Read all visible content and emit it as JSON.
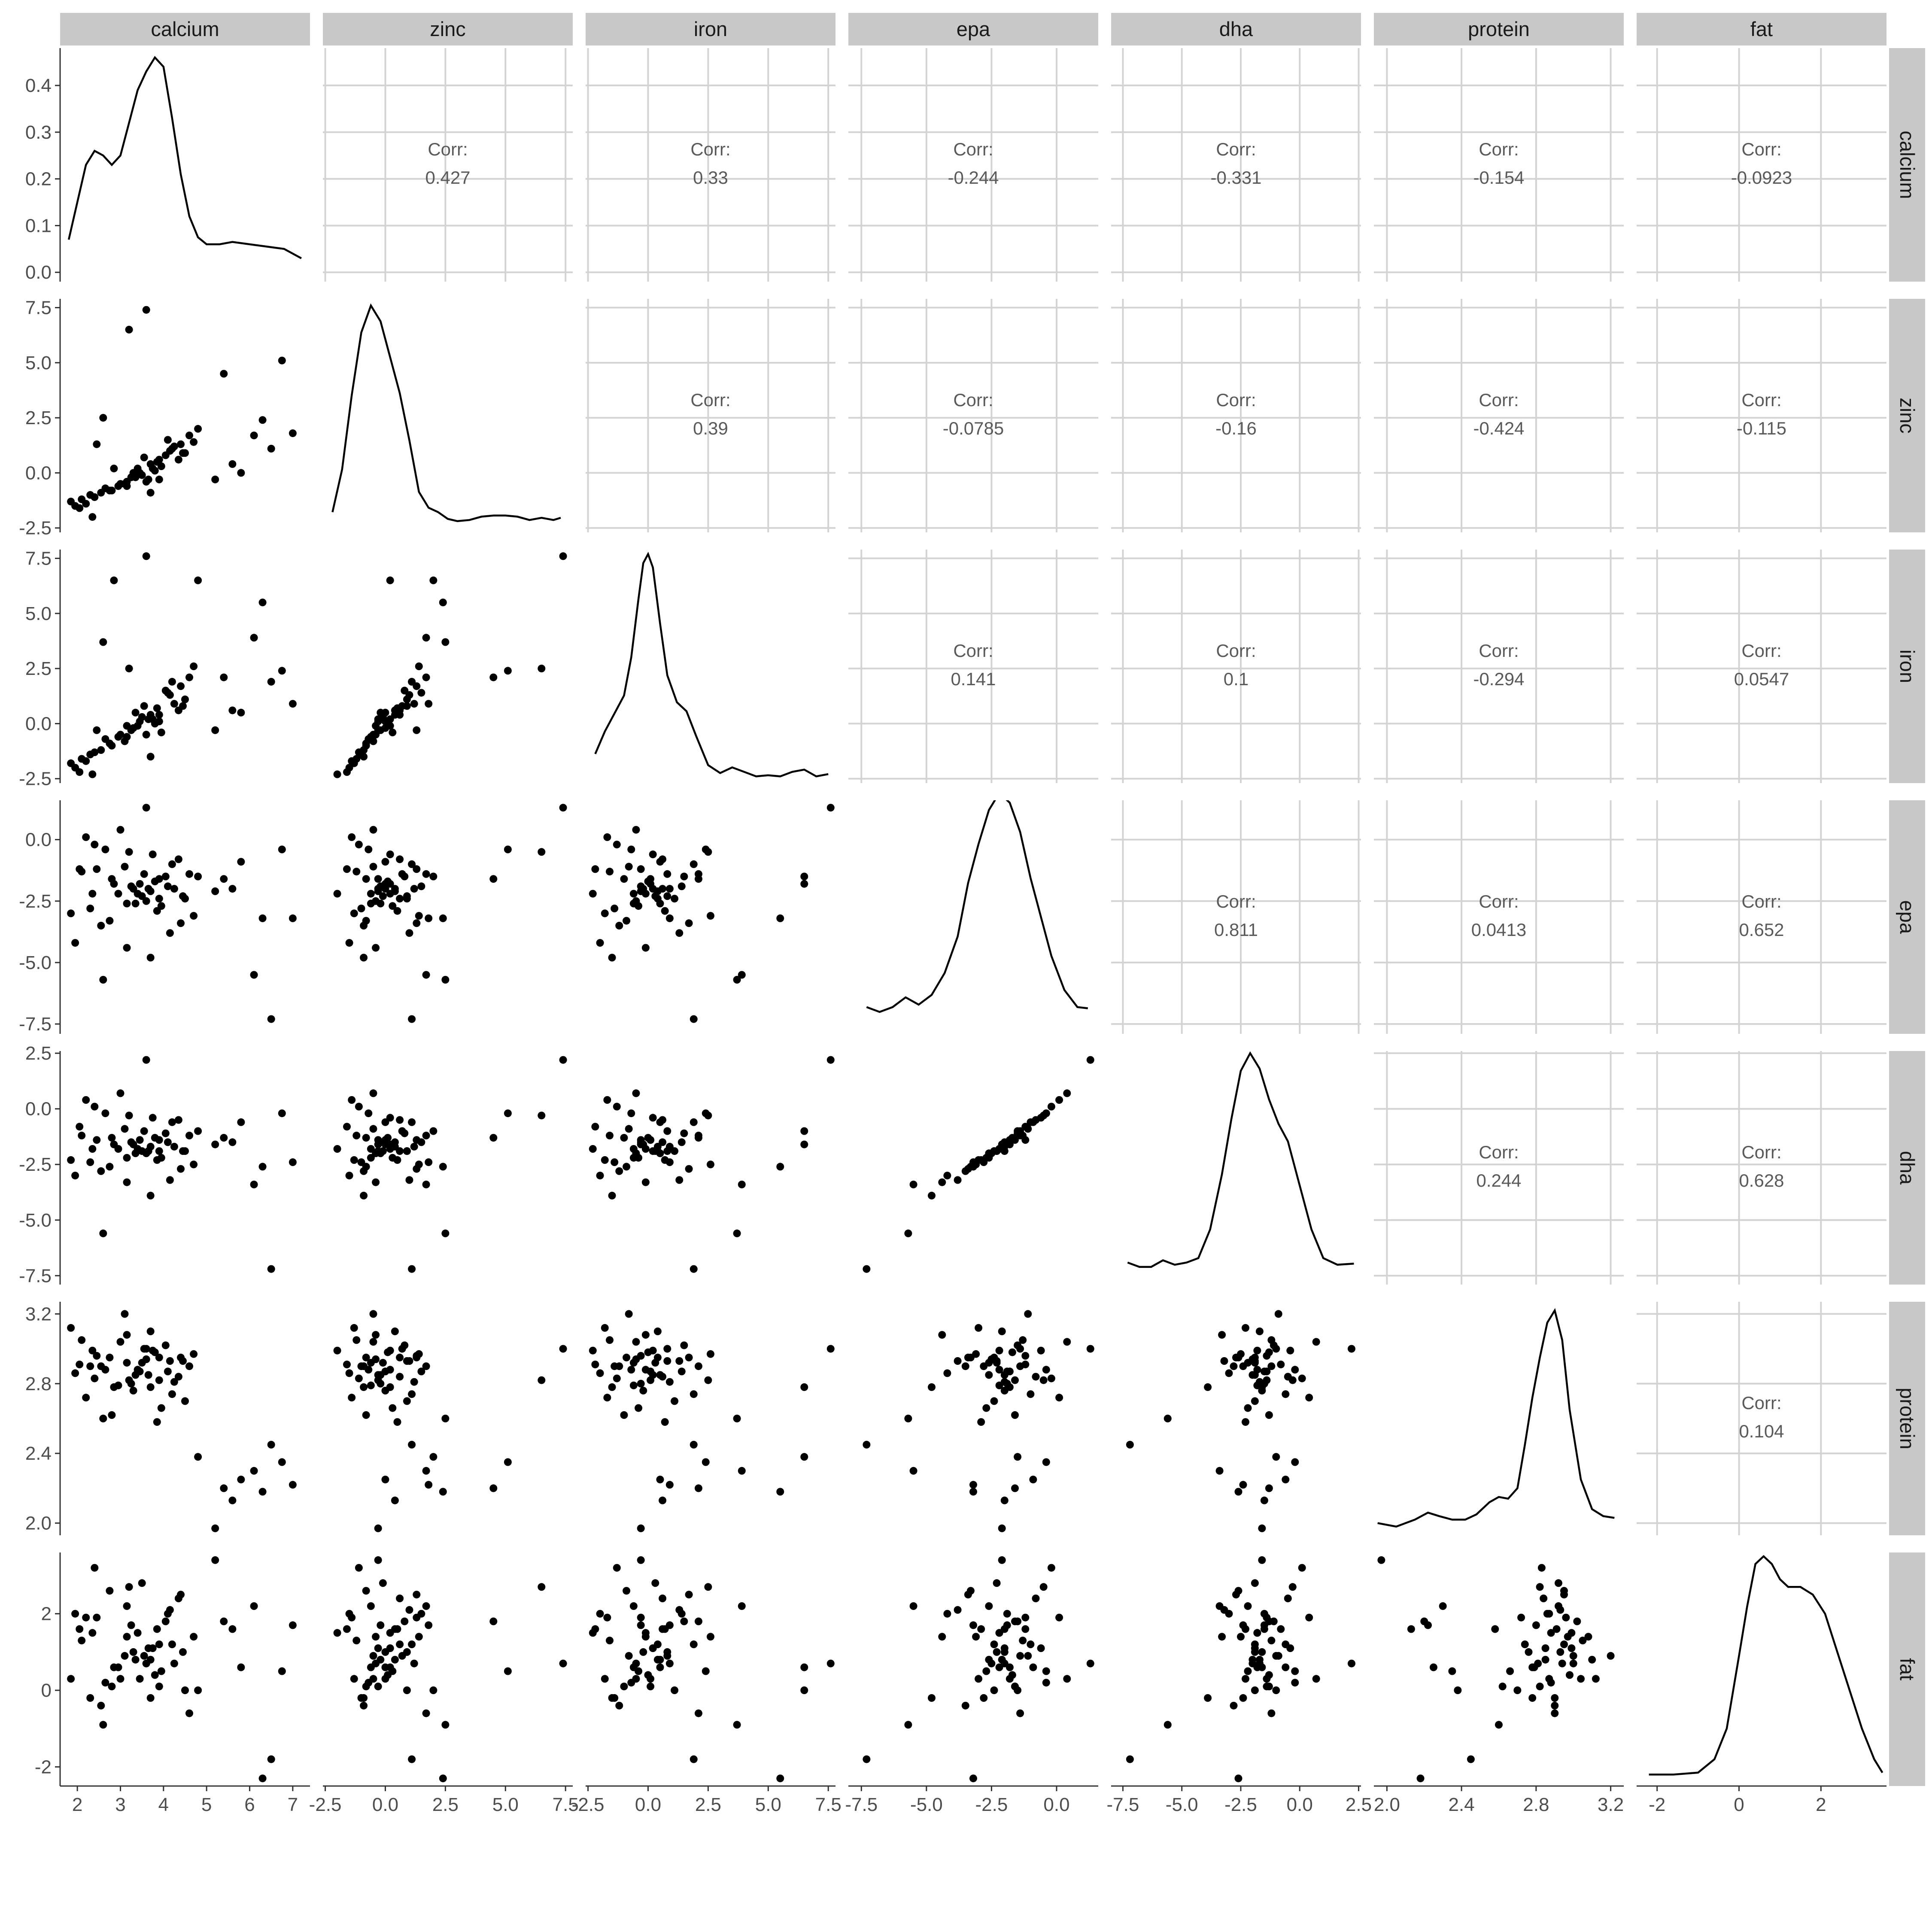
{
  "chart_data": {
    "type": "scatter-matrix",
    "variables": [
      "calcium",
      "zinc",
      "iron",
      "epa",
      "dha",
      "protein",
      "fat"
    ],
    "corr_label": "Corr:",
    "correlations": [
      {
        "row": "calcium",
        "col": "zinc",
        "value": "0.427"
      },
      {
        "row": "calcium",
        "col": "iron",
        "value": "0.33"
      },
      {
        "row": "calcium",
        "col": "epa",
        "value": "-0.244"
      },
      {
        "row": "calcium",
        "col": "dha",
        "value": "-0.331"
      },
      {
        "row": "calcium",
        "col": "protein",
        "value": "-0.154"
      },
      {
        "row": "calcium",
        "col": "fat",
        "value": "-0.0923"
      },
      {
        "row": "zinc",
        "col": "iron",
        "value": "0.39"
      },
      {
        "row": "zinc",
        "col": "epa",
        "value": "-0.0785"
      },
      {
        "row": "zinc",
        "col": "dha",
        "value": "-0.16"
      },
      {
        "row": "zinc",
        "col": "protein",
        "value": "-0.424"
      },
      {
        "row": "zinc",
        "col": "fat",
        "value": "-0.115"
      },
      {
        "row": "iron",
        "col": "epa",
        "value": "0.141"
      },
      {
        "row": "iron",
        "col": "dha",
        "value": "0.1"
      },
      {
        "row": "iron",
        "col": "protein",
        "value": "-0.294"
      },
      {
        "row": "iron",
        "col": "fat",
        "value": "0.0547"
      },
      {
        "row": "epa",
        "col": "dha",
        "value": "0.811"
      },
      {
        "row": "epa",
        "col": "protein",
        "value": "0.0413"
      },
      {
        "row": "epa",
        "col": "fat",
        "value": "0.652"
      },
      {
        "row": "dha",
        "col": "protein",
        "value": "0.244"
      },
      {
        "row": "dha",
        "col": "fat",
        "value": "0.628"
      },
      {
        "row": "protein",
        "col": "fat",
        "value": "0.104"
      }
    ],
    "x_ranges": {
      "calcium": [
        1.6,
        7.4
      ],
      "zinc": [
        -2.6,
        7.8
      ],
      "iron": [
        -2.6,
        7.8
      ],
      "epa": [
        -8.0,
        1.6
      ],
      "dha": [
        -8.0,
        2.6
      ],
      "protein": [
        1.93,
        3.27
      ],
      "fat": [
        -2.5,
        3.6
      ]
    },
    "x_ticks": {
      "calcium": [
        "2",
        "3",
        "4",
        "5",
        "6",
        "7"
      ],
      "zinc": [
        "-2.5",
        "0.0",
        "2.5",
        "5.0",
        "7.5"
      ],
      "iron": [
        "-2.5",
        "0.0",
        "2.5",
        "5.0",
        "7.5"
      ],
      "epa": [
        "-7.5",
        "-5.0",
        "-2.5",
        "0.0"
      ],
      "dha": [
        "-7.5",
        "-5.0",
        "-2.5",
        "0.0",
        "2.5"
      ],
      "protein": [
        "2.0",
        "2.4",
        "2.8",
        "3.2"
      ],
      "fat": [
        "-2",
        "0",
        "2"
      ]
    },
    "y_ranges": {
      "calcium": [
        -0.02,
        0.48
      ],
      "zinc": [
        -2.7,
        7.9
      ],
      "iron": [
        -2.7,
        7.9
      ],
      "epa": [
        -7.9,
        1.6
      ],
      "dha": [
        -7.9,
        2.6
      ],
      "protein": [
        1.93,
        3.27
      ],
      "fat": [
        -2.5,
        3.6
      ]
    },
    "y_ticks": {
      "calcium": [
        "0.0",
        "0.1",
        "0.2",
        "0.3",
        "0.4"
      ],
      "zinc": [
        "-2.5",
        "0.0",
        "2.5",
        "5.0",
        "7.5"
      ],
      "iron": [
        "-2.5",
        "0.0",
        "2.5",
        "5.0",
        "7.5"
      ],
      "epa": [
        "-7.5",
        "-5.0",
        "-2.5",
        "0.0"
      ],
      "dha": [
        "-7.5",
        "-5.0",
        "-2.5",
        "0.0",
        "2.5"
      ],
      "protein": [
        "2.0",
        "2.4",
        "2.8",
        "3.2"
      ],
      "fat": [
        "-2",
        "0",
        "2"
      ]
    },
    "density_curves": {
      "calcium": [
        [
          1.8,
          0.07
        ],
        [
          2.0,
          0.15
        ],
        [
          2.2,
          0.23
        ],
        [
          2.4,
          0.26
        ],
        [
          2.6,
          0.25
        ],
        [
          2.8,
          0.23
        ],
        [
          3.0,
          0.25
        ],
        [
          3.2,
          0.32
        ],
        [
          3.4,
          0.39
        ],
        [
          3.6,
          0.43
        ],
        [
          3.8,
          0.46
        ],
        [
          4.0,
          0.44
        ],
        [
          4.2,
          0.33
        ],
        [
          4.4,
          0.21
        ],
        [
          4.6,
          0.12
        ],
        [
          4.8,
          0.075
        ],
        [
          5.0,
          0.06
        ],
        [
          5.3,
          0.06
        ],
        [
          5.6,
          0.065
        ],
        [
          6.0,
          0.06
        ],
        [
          6.4,
          0.055
        ],
        [
          6.8,
          0.05
        ],
        [
          7.2,
          0.03
        ]
      ],
      "zinc": [
        [
          -2.2,
          -1.7
        ],
        [
          -1.8,
          0.2
        ],
        [
          -1.4,
          3.5
        ],
        [
          -1.0,
          6.3
        ],
        [
          -0.6,
          7.5
        ],
        [
          -0.2,
          6.8
        ],
        [
          0.2,
          5.2
        ],
        [
          0.6,
          3.6
        ],
        [
          1.0,
          1.5
        ],
        [
          1.4,
          -0.8
        ],
        [
          1.8,
          -1.5
        ],
        [
          2.2,
          -1.7
        ],
        [
          2.6,
          -2.0
        ],
        [
          3.0,
          -2.1
        ],
        [
          3.5,
          -2.05
        ],
        [
          4.0,
          -1.9
        ],
        [
          4.5,
          -1.85
        ],
        [
          5.0,
          -1.85
        ],
        [
          5.5,
          -1.9
        ],
        [
          6.0,
          -2.05
        ],
        [
          6.5,
          -1.95
        ],
        [
          7.0,
          -2.05
        ],
        [
          7.3,
          -1.95
        ]
      ],
      "iron": [
        [
          -2.2,
          -1.3
        ],
        [
          -1.8,
          -0.3
        ],
        [
          -1.4,
          0.5
        ],
        [
          -1.0,
          1.3
        ],
        [
          -0.7,
          3.0
        ],
        [
          -0.4,
          5.6
        ],
        [
          -0.2,
          7.2
        ],
        [
          0.0,
          7.6
        ],
        [
          0.2,
          7.0
        ],
        [
          0.5,
          4.5
        ],
        [
          0.8,
          2.2
        ],
        [
          1.2,
          1.0
        ],
        [
          1.6,
          0.6
        ],
        [
          2.0,
          -0.5
        ],
        [
          2.5,
          -1.8
        ],
        [
          3.0,
          -2.15
        ],
        [
          3.5,
          -1.9
        ],
        [
          4.0,
          -2.1
        ],
        [
          4.5,
          -2.3
        ],
        [
          5.0,
          -2.25
        ],
        [
          5.5,
          -2.3
        ],
        [
          6.0,
          -2.1
        ],
        [
          6.5,
          -2.0
        ],
        [
          7.0,
          -2.3
        ],
        [
          7.5,
          -2.2
        ]
      ],
      "epa": [
        [
          -7.3,
          -6.9
        ],
        [
          -6.8,
          -7.1
        ],
        [
          -6.3,
          -6.9
        ],
        [
          -5.8,
          -6.5
        ],
        [
          -5.3,
          -6.8
        ],
        [
          -4.8,
          -6.4
        ],
        [
          -4.3,
          -5.5
        ],
        [
          -3.8,
          -4.0
        ],
        [
          -3.4,
          -1.8
        ],
        [
          -3.0,
          -0.2
        ],
        [
          -2.6,
          1.2
        ],
        [
          -2.2,
          1.9
        ],
        [
          -1.8,
          1.5
        ],
        [
          -1.4,
          0.3
        ],
        [
          -1.0,
          -1.6
        ],
        [
          -0.6,
          -3.2
        ],
        [
          -0.2,
          -4.8
        ],
        [
          0.3,
          -6.2
        ],
        [
          0.8,
          -6.9
        ],
        [
          1.2,
          -6.95
        ]
      ],
      "dha": [
        [
          -7.3,
          -7.0
        ],
        [
          -6.8,
          -7.2
        ],
        [
          -6.3,
          -7.2
        ],
        [
          -5.8,
          -6.9
        ],
        [
          -5.3,
          -7.1
        ],
        [
          -4.8,
          -7.0
        ],
        [
          -4.3,
          -6.8
        ],
        [
          -3.8,
          -5.5
        ],
        [
          -3.3,
          -3.0
        ],
        [
          -2.9,
          -0.5
        ],
        [
          -2.5,
          1.7
        ],
        [
          -2.1,
          2.5
        ],
        [
          -1.7,
          1.8
        ],
        [
          -1.3,
          0.4
        ],
        [
          -0.9,
          -0.7
        ],
        [
          -0.5,
          -1.5
        ],
        [
          0.0,
          -3.5
        ],
        [
          0.5,
          -5.5
        ],
        [
          1.0,
          -6.8
        ],
        [
          1.6,
          -7.1
        ],
        [
          2.3,
          -7.05
        ]
      ],
      "protein": [
        [
          1.95,
          2.0
        ],
        [
          2.05,
          1.98
        ],
        [
          2.15,
          2.02
        ],
        [
          2.22,
          2.06
        ],
        [
          2.28,
          2.04
        ],
        [
          2.35,
          2.02
        ],
        [
          2.42,
          2.02
        ],
        [
          2.48,
          2.05
        ],
        [
          2.55,
          2.12
        ],
        [
          2.6,
          2.15
        ],
        [
          2.65,
          2.14
        ],
        [
          2.7,
          2.2
        ],
        [
          2.74,
          2.45
        ],
        [
          2.78,
          2.72
        ],
        [
          2.82,
          2.95
        ],
        [
          2.86,
          3.15
        ],
        [
          2.9,
          3.22
        ],
        [
          2.94,
          3.05
        ],
        [
          2.98,
          2.65
        ],
        [
          3.04,
          2.25
        ],
        [
          3.1,
          2.08
        ],
        [
          3.16,
          2.04
        ],
        [
          3.22,
          2.03
        ]
      ],
      "fat": [
        [
          -2.2,
          -2.2
        ],
        [
          -1.6,
          -2.2
        ],
        [
          -1.0,
          -2.15
        ],
        [
          -0.6,
          -1.8
        ],
        [
          -0.3,
          -1.0
        ],
        [
          0.0,
          0.9
        ],
        [
          0.2,
          2.2
        ],
        [
          0.4,
          3.3
        ],
        [
          0.6,
          3.5
        ],
        [
          0.8,
          3.3
        ],
        [
          1.0,
          2.9
        ],
        [
          1.2,
          2.7
        ],
        [
          1.5,
          2.7
        ],
        [
          1.8,
          2.5
        ],
        [
          2.1,
          2.0
        ],
        [
          2.4,
          1.0
        ],
        [
          2.7,
          0.0
        ],
        [
          3.0,
          -1.0
        ],
        [
          3.3,
          -1.8
        ],
        [
          3.5,
          -2.15
        ]
      ]
    },
    "series": [
      {
        "name": "calcium",
        "values": [
          3.65,
          1.85,
          2.45,
          2.85,
          3.15,
          3.55,
          3.4,
          3.9,
          2.75,
          3.7,
          4.2,
          2.3,
          3.25,
          3.8,
          1.95,
          4.5,
          2.1,
          3.6,
          4.35,
          2.55,
          3.3,
          4.05,
          2.65,
          3.5,
          3.95,
          4.7,
          2.4,
          3.1,
          3.85,
          3.45,
          4.15,
          2.95,
          3.75,
          4.6,
          2.2,
          3.35,
          4.4,
          2.8,
          3.15,
          4.25,
          2.05,
          5.4,
          5.8,
          6.1,
          6.5,
          6.75,
          7.0,
          5.2,
          5.6,
          6.3,
          4.8,
          3.6,
          3.2,
          2.6,
          3.9,
          4.1,
          3.0,
          2.35,
          3.7,
          4.45
        ]
      },
      {
        "name": "zinc",
        "values": [
          -0.3,
          -1.3,
          1.3,
          0.2,
          -0.6,
          0.7,
          0.2,
          -0.3,
          -0.8,
          0.4,
          1.1,
          -1.0,
          -0.2,
          0.1,
          -1.5,
          0.9,
          -1.2,
          -0.4,
          0.6,
          -0.9,
          0.0,
          0.8,
          -0.7,
          -0.1,
          0.3,
          1.4,
          -1.1,
          -0.5,
          0.5,
          0.0,
          1.0,
          -0.6,
          0.2,
          1.7,
          -1.4,
          -0.2,
          1.3,
          -0.8,
          -0.4,
          1.2,
          -1.6,
          4.5,
          0.0,
          1.7,
          1.1,
          5.1,
          1.8,
          -0.3,
          0.4,
          2.4,
          2.0,
          7.4,
          6.5,
          2.5,
          0.6,
          1.5,
          -0.5,
          -2.0,
          -0.9,
          0.9
        ]
      },
      {
        "name": "iron",
        "values": [
          0.2,
          -1.8,
          -0.3,
          6.5,
          -0.6,
          0.8,
          -0.1,
          0.1,
          -0.9,
          0.4,
          1.9,
          -1.4,
          -0.3,
          0.0,
          -2.0,
          1.1,
          -1.6,
          -0.5,
          0.6,
          -1.2,
          -0.2,
          1.5,
          -0.7,
          0.3,
          -0.4,
          2.6,
          -1.3,
          -0.8,
          0.7,
          0.1,
          1.3,
          -0.6,
          0.2,
          2.1,
          -1.7,
          0.5,
          1.7,
          -1.0,
          -0.1,
          0.9,
          -2.2,
          2.1,
          0.5,
          3.9,
          1.9,
          2.4,
          0.9,
          -0.3,
          0.6,
          5.5,
          6.5,
          7.6,
          2.5,
          3.7,
          0.4,
          1.4,
          -0.5,
          -2.3,
          -1.5,
          0.8
        ]
      },
      {
        "name": "epa",
        "values": [
          -2.0,
          -3.0,
          -1.2,
          -1.8,
          -2.6,
          -1.4,
          -2.2,
          -1.6,
          -3.3,
          -2.1,
          -1.0,
          -2.8,
          -1.9,
          -1.7,
          -4.2,
          -2.4,
          -1.3,
          -2.5,
          -0.8,
          -3.5,
          -2.0,
          -1.5,
          -0.4,
          -2.3,
          -2.7,
          -3.1,
          -0.2,
          -1.1,
          -2.9,
          -1.8,
          -3.8,
          -2.2,
          -0.6,
          -1.4,
          0.1,
          -2.6,
          -3.4,
          -1.6,
          -4.4,
          -2.0,
          -1.2,
          -1.6,
          -0.9,
          -5.5,
          -7.3,
          -0.4,
          -3.2,
          -2.1,
          -2.0,
          -3.2,
          -1.5,
          1.3,
          -0.5,
          -5.7,
          -2.4,
          -1.9,
          0.4,
          -2.2,
          -4.8,
          -2.3
        ]
      },
      {
        "name": "dha",
        "values": [
          -1.9,
          -2.3,
          -1.4,
          -1.6,
          -2.2,
          -1.0,
          -1.8,
          -1.4,
          -2.6,
          -1.7,
          -0.6,
          -2.4,
          -1.5,
          -1.3,
          -3.0,
          -1.9,
          -1.2,
          -2.0,
          -0.5,
          -2.8,
          -1.6,
          -1.1,
          -0.2,
          -1.9,
          -2.2,
          -2.5,
          0.1,
          -0.9,
          -2.3,
          -1.4,
          -3.2,
          -1.8,
          -0.4,
          -1.2,
          0.4,
          -2.0,
          -2.7,
          -1.3,
          -3.3,
          -1.7,
          -0.8,
          -1.3,
          -0.6,
          -3.4,
          -7.2,
          -0.2,
          -2.4,
          -1.6,
          -1.5,
          -2.6,
          -1.0,
          2.2,
          -0.3,
          -5.6,
          -1.9,
          -1.5,
          0.7,
          -1.8,
          -3.9,
          -1.9
        ]
      },
      {
        "name": "protein",
        "values": [
          2.85,
          3.12,
          2.96,
          2.78,
          2.92,
          3.0,
          2.88,
          2.82,
          2.95,
          3.1,
          2.74,
          2.9,
          2.8,
          2.98,
          2.86,
          2.7,
          3.05,
          2.94,
          2.84,
          2.9,
          2.76,
          3.02,
          2.88,
          2.92,
          2.66,
          2.97,
          2.83,
          3.2,
          2.58,
          2.87,
          2.93,
          2.79,
          2.99,
          2.9,
          2.72,
          2.85,
          2.95,
          2.62,
          3.08,
          2.81,
          2.91,
          2.2,
          2.25,
          2.3,
          2.45,
          2.35,
          2.22,
          1.97,
          2.13,
          2.18,
          2.38,
          3.0,
          2.82,
          2.6,
          2.95,
          2.87,
          3.04,
          2.99,
          2.78,
          2.93
        ]
      },
      {
        "name": "fat",
        "values": [
          1.1,
          0.3,
          1.9,
          0.6,
          2.2,
          0.9,
          1.5,
          0.1,
          2.6,
          0.8,
          1.2,
          -0.2,
          1.7,
          0.4,
          2.0,
          0.0,
          1.3,
          0.7,
          2.4,
          -0.4,
          1.0,
          1.8,
          0.2,
          2.8,
          0.5,
          1.4,
          3.2,
          0.9,
          1.6,
          0.3,
          2.1,
          0.6,
          1.1,
          -0.6,
          1.9,
          0.8,
          2.5,
          0.1,
          1.4,
          0.7,
          1.6,
          1.8,
          0.6,
          2.2,
          -1.8,
          0.5,
          1.7,
          3.4,
          1.6,
          -2.3,
          0.0,
          0.7,
          2.7,
          -0.9,
          1.2,
          2.0,
          0.3,
          1.5,
          -0.2,
          1.0
        ]
      }
    ]
  }
}
